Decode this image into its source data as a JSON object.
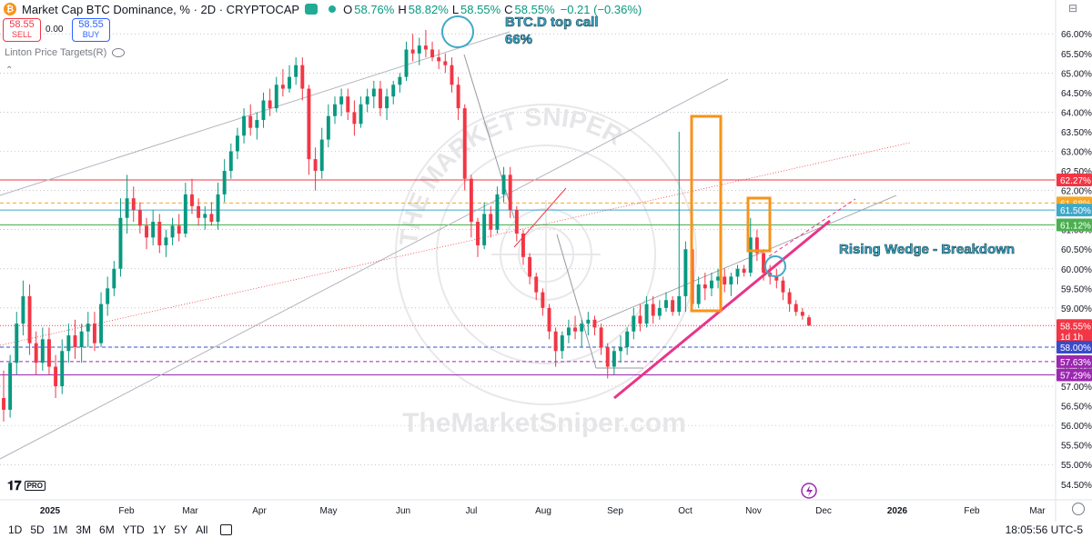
{
  "header": {
    "title": "Market Cap BTC Dominance, % · 2D · CRYPTOCAP",
    "open_label": "O",
    "open": "58.76%",
    "high_label": "H",
    "high": "58.82%",
    "low_label": "L",
    "low": "58.55%",
    "close_label": "C",
    "close": "58.55%",
    "change": "−0.21 (−0.36%)"
  },
  "trade": {
    "sell_price": "58.55",
    "sell_label": "SELL",
    "spread": "0.00",
    "buy_price": "58.55",
    "buy_label": "BUY"
  },
  "indicator": {
    "name": "Linton Price Targets(R)"
  },
  "bottom_bar": {
    "ranges": [
      "1D",
      "5D",
      "1M",
      "3M",
      "6M",
      "YTD",
      "1Y",
      "5Y",
      "All"
    ],
    "clock": "18:05:56 UTC-5"
  },
  "watermark": {
    "url": "TheMarketSniper.com",
    "seal_text": "THE MARKET SNIPER"
  },
  "chart_data": {
    "type": "candlestick",
    "title": "Market Cap BTC Dominance, %",
    "ylim": [
      54.1,
      66.4
    ],
    "y_ticks": [
      "66.00%",
      "65.50%",
      "65.00%",
      "64.50%",
      "64.00%",
      "63.50%",
      "63.00%",
      "62.50%",
      "62.00%",
      "61.50%",
      "61.00%",
      "60.50%",
      "60.00%",
      "59.50%",
      "59.00%",
      "58.50%",
      "58.00%",
      "57.50%",
      "57.00%",
      "56.50%",
      "56.00%",
      "55.50%",
      "55.00%",
      "54.50%"
    ],
    "x_ticks": [
      "2025",
      "Feb",
      "Mar",
      "Apr",
      "May",
      "Jun",
      "Jul",
      "Aug",
      "Sep",
      "Oct",
      "Nov",
      "Dec",
      "2026",
      "Feb",
      "Mar"
    ],
    "price_labels": [
      {
        "text": "62.27%",
        "value": 62.27,
        "color": "#f23645"
      },
      {
        "text": "61.68%",
        "value": 61.68,
        "color": "#f5a623"
      },
      {
        "text": "61.50%",
        "value": 61.5,
        "color": "#40a9c9"
      },
      {
        "text": "61.12%",
        "value": 61.12,
        "color": "#4caf50"
      },
      {
        "text": "58.55%",
        "value": 58.55,
        "color": "#f23645"
      },
      {
        "text": "1d 1h",
        "value": 58.28,
        "color": "#f23645"
      },
      {
        "text": "58.00%",
        "value": 58.0,
        "color": "#3a4bc9"
      },
      {
        "text": "57.63%",
        "value": 57.63,
        "color": "#9c27b0"
      },
      {
        "text": "57.29%",
        "value": 57.29,
        "color": "#9c27b0"
      }
    ],
    "horizontal_levels": [
      {
        "value": 62.27,
        "color": "#f23645",
        "style": "solid"
      },
      {
        "value": 61.68,
        "color": "#f5a623",
        "style": "dashed"
      },
      {
        "value": 61.5,
        "color": "#40a9c9",
        "style": "solid"
      },
      {
        "value": 61.12,
        "color": "#4caf50",
        "style": "solid"
      },
      {
        "value": 58.55,
        "color": "#f23645",
        "style": "dotted"
      },
      {
        "value": 58.0,
        "color": "#3a4bc9",
        "style": "dashed"
      },
      {
        "value": 57.63,
        "color": "#9c27b0",
        "style": "dashed"
      },
      {
        "value": 57.29,
        "color": "#9c27b0",
        "style": "solid"
      }
    ],
    "annotations": [
      {
        "text": "BTC.D top call",
        "color": "#40a9c9"
      },
      {
        "text": "66%",
        "color": "#40a9c9"
      },
      {
        "text": "Rising Wedge - Breakdown",
        "color": "#40a9c9"
      }
    ],
    "candles": [
      {
        "o": 56.7,
        "h": 57.4,
        "l": 56.1,
        "c": 56.4
      },
      {
        "o": 56.4,
        "h": 57.8,
        "l": 56.2,
        "c": 57.6
      },
      {
        "o": 57.6,
        "h": 58.9,
        "l": 57.3,
        "c": 58.6
      },
      {
        "o": 58.6,
        "h": 59.7,
        "l": 58.3,
        "c": 59.3
      },
      {
        "o": 59.3,
        "h": 59.6,
        "l": 57.8,
        "c": 58.1
      },
      {
        "o": 58.1,
        "h": 58.4,
        "l": 57.3,
        "c": 57.6
      },
      {
        "o": 57.6,
        "h": 58.5,
        "l": 57.4,
        "c": 58.2
      },
      {
        "o": 58.2,
        "h": 58.5,
        "l": 57.3,
        "c": 57.5
      },
      {
        "o": 57.5,
        "h": 57.8,
        "l": 56.7,
        "c": 57.0
      },
      {
        "o": 57.0,
        "h": 58.2,
        "l": 56.8,
        "c": 57.9
      },
      {
        "o": 57.9,
        "h": 58.6,
        "l": 57.6,
        "c": 58.3
      },
      {
        "o": 58.3,
        "h": 58.7,
        "l": 57.7,
        "c": 58.0
      },
      {
        "o": 58.0,
        "h": 58.6,
        "l": 57.6,
        "c": 58.4
      },
      {
        "o": 58.4,
        "h": 58.9,
        "l": 58.0,
        "c": 58.6
      },
      {
        "o": 58.6,
        "h": 58.9,
        "l": 57.9,
        "c": 58.1
      },
      {
        "o": 58.1,
        "h": 59.4,
        "l": 58.0,
        "c": 59.1
      },
      {
        "o": 59.1,
        "h": 59.8,
        "l": 58.8,
        "c": 59.5
      },
      {
        "o": 59.5,
        "h": 60.2,
        "l": 59.3,
        "c": 60.0
      },
      {
        "o": 60.0,
        "h": 61.8,
        "l": 59.8,
        "c": 61.3
      },
      {
        "o": 61.3,
        "h": 62.4,
        "l": 60.9,
        "c": 61.8
      },
      {
        "o": 61.8,
        "h": 62.1,
        "l": 61.2,
        "c": 61.5
      },
      {
        "o": 61.5,
        "h": 61.7,
        "l": 60.9,
        "c": 61.1
      },
      {
        "o": 61.1,
        "h": 61.3,
        "l": 60.5,
        "c": 60.8
      },
      {
        "o": 60.8,
        "h": 61.5,
        "l": 60.6,
        "c": 61.2
      },
      {
        "o": 61.2,
        "h": 61.4,
        "l": 60.4,
        "c": 60.6
      },
      {
        "o": 60.6,
        "h": 61.0,
        "l": 60.3,
        "c": 60.8
      },
      {
        "o": 60.8,
        "h": 61.3,
        "l": 60.6,
        "c": 61.1
      },
      {
        "o": 61.1,
        "h": 61.4,
        "l": 60.7,
        "c": 60.9
      },
      {
        "o": 60.9,
        "h": 62.2,
        "l": 60.8,
        "c": 61.9
      },
      {
        "o": 61.9,
        "h": 62.3,
        "l": 61.4,
        "c": 61.6
      },
      {
        "o": 61.6,
        "h": 61.8,
        "l": 61.1,
        "c": 61.3
      },
      {
        "o": 61.3,
        "h": 61.6,
        "l": 61.0,
        "c": 61.4
      },
      {
        "o": 61.4,
        "h": 61.7,
        "l": 61.1,
        "c": 61.2
      },
      {
        "o": 61.2,
        "h": 62.2,
        "l": 61.0,
        "c": 61.9
      },
      {
        "o": 61.9,
        "h": 62.8,
        "l": 61.7,
        "c": 62.5
      },
      {
        "o": 62.5,
        "h": 63.2,
        "l": 62.3,
        "c": 63.0
      },
      {
        "o": 63.0,
        "h": 63.6,
        "l": 62.8,
        "c": 63.4
      },
      {
        "o": 63.4,
        "h": 64.1,
        "l": 63.2,
        "c": 63.9
      },
      {
        "o": 63.9,
        "h": 64.2,
        "l": 63.4,
        "c": 63.6
      },
      {
        "o": 63.6,
        "h": 64.0,
        "l": 63.3,
        "c": 63.8
      },
      {
        "o": 63.8,
        "h": 64.5,
        "l": 63.6,
        "c": 64.3
      },
      {
        "o": 64.3,
        "h": 64.6,
        "l": 63.9,
        "c": 64.1
      },
      {
        "o": 64.1,
        "h": 64.9,
        "l": 64.0,
        "c": 64.7
      },
      {
        "o": 64.7,
        "h": 65.1,
        "l": 64.4,
        "c": 64.6
      },
      {
        "o": 64.6,
        "h": 65.2,
        "l": 64.5,
        "c": 64.9
      },
      {
        "o": 64.9,
        "h": 65.4,
        "l": 64.7,
        "c": 65.2
      },
      {
        "o": 65.2,
        "h": 65.4,
        "l": 64.3,
        "c": 64.6
      },
      {
        "o": 64.6,
        "h": 64.7,
        "l": 62.4,
        "c": 62.8
      },
      {
        "o": 62.8,
        "h": 63.1,
        "l": 62.0,
        "c": 62.5
      },
      {
        "o": 62.5,
        "h": 63.6,
        "l": 62.3,
        "c": 63.3
      },
      {
        "o": 63.3,
        "h": 64.2,
        "l": 63.1,
        "c": 63.9
      },
      {
        "o": 63.9,
        "h": 64.4,
        "l": 63.7,
        "c": 64.2
      },
      {
        "o": 64.2,
        "h": 64.6,
        "l": 63.9,
        "c": 64.4
      },
      {
        "o": 64.4,
        "h": 64.6,
        "l": 63.8,
        "c": 64.0
      },
      {
        "o": 64.0,
        "h": 64.3,
        "l": 63.4,
        "c": 63.7
      },
      {
        "o": 63.7,
        "h": 64.4,
        "l": 63.6,
        "c": 64.2
      },
      {
        "o": 64.2,
        "h": 64.6,
        "l": 64.0,
        "c": 64.4
      },
      {
        "o": 64.4,
        "h": 64.8,
        "l": 64.1,
        "c": 64.6
      },
      {
        "o": 64.6,
        "h": 64.8,
        "l": 63.9,
        "c": 64.1
      },
      {
        "o": 64.1,
        "h": 64.6,
        "l": 63.8,
        "c": 64.4
      },
      {
        "o": 64.4,
        "h": 64.8,
        "l": 64.2,
        "c": 64.7
      },
      {
        "o": 64.7,
        "h": 65.0,
        "l": 64.5,
        "c": 64.9
      },
      {
        "o": 64.9,
        "h": 65.8,
        "l": 64.8,
        "c": 65.6
      },
      {
        "o": 65.6,
        "h": 66.0,
        "l": 65.3,
        "c": 65.5
      },
      {
        "o": 65.5,
        "h": 65.9,
        "l": 65.2,
        "c": 65.7
      },
      {
        "o": 65.7,
        "h": 66.1,
        "l": 65.4,
        "c": 65.6
      },
      {
        "o": 65.6,
        "h": 65.8,
        "l": 65.3,
        "c": 65.4
      },
      {
        "o": 65.4,
        "h": 65.6,
        "l": 65.1,
        "c": 65.3
      },
      {
        "o": 65.3,
        "h": 65.5,
        "l": 65.0,
        "c": 65.2
      },
      {
        "o": 65.2,
        "h": 65.4,
        "l": 64.5,
        "c": 64.7
      },
      {
        "o": 64.7,
        "h": 64.9,
        "l": 63.8,
        "c": 64.1
      },
      {
        "o": 64.1,
        "h": 64.2,
        "l": 62.0,
        "c": 62.3
      },
      {
        "o": 62.3,
        "h": 62.4,
        "l": 60.8,
        "c": 61.2
      },
      {
        "o": 61.2,
        "h": 61.3,
        "l": 60.3,
        "c": 60.6
      },
      {
        "o": 60.6,
        "h": 61.7,
        "l": 60.5,
        "c": 61.4
      },
      {
        "o": 61.4,
        "h": 61.6,
        "l": 60.8,
        "c": 61.0
      },
      {
        "o": 61.0,
        "h": 62.1,
        "l": 60.9,
        "c": 61.9
      },
      {
        "o": 61.9,
        "h": 62.6,
        "l": 61.7,
        "c": 62.4
      },
      {
        "o": 62.4,
        "h": 62.6,
        "l": 61.3,
        "c": 61.5
      },
      {
        "o": 61.5,
        "h": 61.6,
        "l": 60.7,
        "c": 60.9
      },
      {
        "o": 60.9,
        "h": 61.0,
        "l": 60.1,
        "c": 60.3
      },
      {
        "o": 60.3,
        "h": 60.4,
        "l": 59.6,
        "c": 59.8
      },
      {
        "o": 59.8,
        "h": 59.9,
        "l": 59.2,
        "c": 59.4
      },
      {
        "o": 59.4,
        "h": 59.5,
        "l": 58.8,
        "c": 59.0
      },
      {
        "o": 59.0,
        "h": 59.1,
        "l": 58.2,
        "c": 58.4
      },
      {
        "o": 58.4,
        "h": 58.5,
        "l": 57.5,
        "c": 57.9
      },
      {
        "o": 57.9,
        "h": 58.4,
        "l": 57.7,
        "c": 58.3
      },
      {
        "o": 58.3,
        "h": 58.7,
        "l": 58.1,
        "c": 58.5
      },
      {
        "o": 58.5,
        "h": 58.8,
        "l": 58.2,
        "c": 58.4
      },
      {
        "o": 58.4,
        "h": 58.7,
        "l": 58.0,
        "c": 58.6
      },
      {
        "o": 58.6,
        "h": 58.9,
        "l": 58.3,
        "c": 58.7
      },
      {
        "o": 58.7,
        "h": 58.8,
        "l": 58.3,
        "c": 58.5
      },
      {
        "o": 58.5,
        "h": 58.6,
        "l": 57.8,
        "c": 58.0
      },
      {
        "o": 58.0,
        "h": 58.1,
        "l": 57.2,
        "c": 57.5
      },
      {
        "o": 57.5,
        "h": 58.0,
        "l": 57.3,
        "c": 57.9
      },
      {
        "o": 57.9,
        "h": 58.3,
        "l": 57.6,
        "c": 58.0
      },
      {
        "o": 58.0,
        "h": 58.5,
        "l": 57.8,
        "c": 58.4
      },
      {
        "o": 58.4,
        "h": 59.0,
        "l": 58.2,
        "c": 58.8
      },
      {
        "o": 58.8,
        "h": 59.1,
        "l": 58.4,
        "c": 58.6
      },
      {
        "o": 58.6,
        "h": 59.3,
        "l": 58.5,
        "c": 59.1
      },
      {
        "o": 59.1,
        "h": 59.3,
        "l": 58.6,
        "c": 58.8
      },
      {
        "o": 58.8,
        "h": 59.2,
        "l": 58.7,
        "c": 59.0
      },
      {
        "o": 59.0,
        "h": 59.4,
        "l": 58.9,
        "c": 59.2
      },
      {
        "o": 59.2,
        "h": 59.3,
        "l": 58.8,
        "c": 58.9
      },
      {
        "o": 58.9,
        "h": 63.5,
        "l": 58.8,
        "c": 59.3
      },
      {
        "o": 59.3,
        "h": 60.7,
        "l": 58.9,
        "c": 60.5
      },
      {
        "o": 60.5,
        "h": 60.6,
        "l": 58.9,
        "c": 59.1
      },
      {
        "o": 59.1,
        "h": 59.8,
        "l": 59.0,
        "c": 59.6
      },
      {
        "o": 59.6,
        "h": 59.9,
        "l": 59.2,
        "c": 59.5
      },
      {
        "o": 59.5,
        "h": 59.9,
        "l": 59.3,
        "c": 59.7
      },
      {
        "o": 59.7,
        "h": 60.0,
        "l": 59.5,
        "c": 59.8
      },
      {
        "o": 59.8,
        "h": 60.0,
        "l": 59.4,
        "c": 59.6
      },
      {
        "o": 59.6,
        "h": 59.9,
        "l": 59.3,
        "c": 59.8
      },
      {
        "o": 59.8,
        "h": 60.1,
        "l": 59.6,
        "c": 60.0
      },
      {
        "o": 60.0,
        "h": 60.1,
        "l": 59.8,
        "c": 59.9
      },
      {
        "o": 59.9,
        "h": 61.3,
        "l": 59.8,
        "c": 60.8
      },
      {
        "o": 60.8,
        "h": 61.0,
        "l": 60.2,
        "c": 60.4
      },
      {
        "o": 60.4,
        "h": 60.5,
        "l": 59.7,
        "c": 59.9
      },
      {
        "o": 59.9,
        "h": 60.1,
        "l": 59.6,
        "c": 59.8
      },
      {
        "o": 59.8,
        "h": 60.0,
        "l": 59.5,
        "c": 59.7
      },
      {
        "o": 59.7,
        "h": 59.8,
        "l": 59.2,
        "c": 59.4
      },
      {
        "o": 59.4,
        "h": 59.5,
        "l": 58.9,
        "c": 59.1
      },
      {
        "o": 59.1,
        "h": 59.2,
        "l": 58.8,
        "c": 58.9
      },
      {
        "o": 58.9,
        "h": 59.0,
        "l": 58.7,
        "c": 58.8
      },
      {
        "o": 58.76,
        "h": 58.82,
        "l": 58.55,
        "c": 58.55
      }
    ]
  }
}
